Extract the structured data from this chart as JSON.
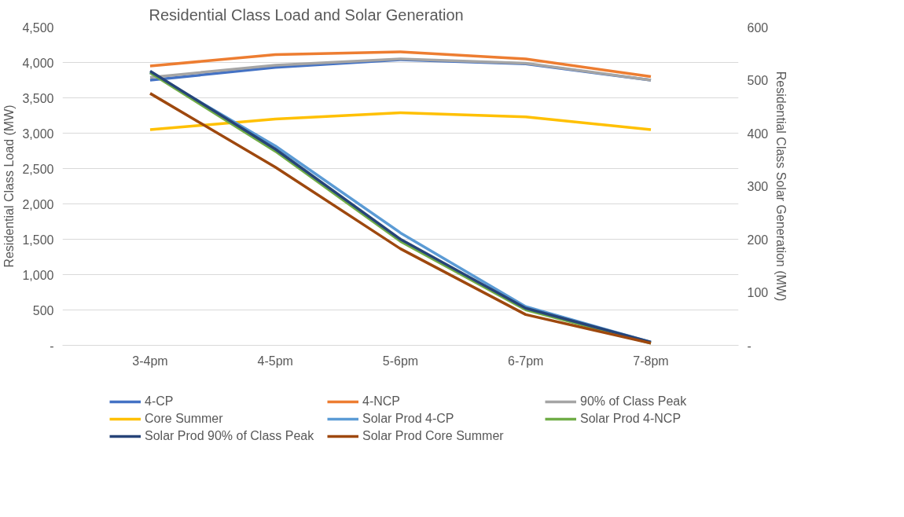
{
  "chart_data": {
    "type": "line",
    "title": "Residential Class Load and Solar Generation",
    "ylabel": "Residential Class Load (MW)",
    "y2label": "Residential Class Solar Generation (MW)",
    "categories": [
      "3-4pm",
      "4-5pm",
      "5-6pm",
      "6-7pm",
      "7-8pm"
    ],
    "ylim": [
      0,
      4500
    ],
    "yticks": [
      {
        "value": 0,
        "label": "-"
      },
      {
        "value": 500,
        "label": "500"
      },
      {
        "value": 1000,
        "label": "1,000"
      },
      {
        "value": 1500,
        "label": "1,500"
      },
      {
        "value": 2000,
        "label": "2,000"
      },
      {
        "value": 2500,
        "label": "2,500"
      },
      {
        "value": 3000,
        "label": "3,000"
      },
      {
        "value": 3500,
        "label": "3,500"
      },
      {
        "value": 4000,
        "label": "4,000"
      },
      {
        "value": 4500,
        "label": "4,500"
      }
    ],
    "y2lim": [
      0,
      600
    ],
    "y2ticks": [
      {
        "value": 0,
        "label": "-"
      },
      100,
      200,
      300,
      400,
      500,
      600
    ],
    "grid": "y",
    "legend": "bottom",
    "marker": "none",
    "line_style": "solid",
    "series": [
      {
        "name": "4-CP",
        "color": "#4472c4",
        "values": [
          3750,
          3930,
          4040,
          3980,
          3750
        ]
      },
      {
        "name": "4-NCP",
        "color": "#ed7d31",
        "values": [
          3950,
          4110,
          4150,
          4050,
          3800
        ]
      },
      {
        "name": "90% of Class Peak",
        "color": "#a5a5a5",
        "values": [
          3790,
          3960,
          4050,
          3990,
          3750
        ]
      },
      {
        "name": "Core Summer",
        "color": "#ffc000",
        "values": [
          3050,
          3200,
          3290,
          3230,
          3050
        ]
      },
      {
        "name": "Solar Prod 4-CP",
        "color": "#5b9bd5",
        "axis": "y2",
        "values": [
          514,
          376,
          212,
          73,
          6
        ]
      },
      {
        "name": "Solar Prod 4-NCP",
        "color": "#70ad47",
        "axis": "y2",
        "values": [
          514,
          366,
          196,
          67,
          4
        ]
      },
      {
        "name": "Solar Prod 90% of Class Peak",
        "color": "#264478",
        "axis": "y2",
        "values": [
          517,
          370,
          200,
          70,
          6
        ]
      },
      {
        "name": "Solar Prod Core Summer",
        "color": "#9e480e",
        "axis": "y2",
        "values": [
          475,
          336,
          182,
          58,
          4
        ]
      }
    ]
  }
}
